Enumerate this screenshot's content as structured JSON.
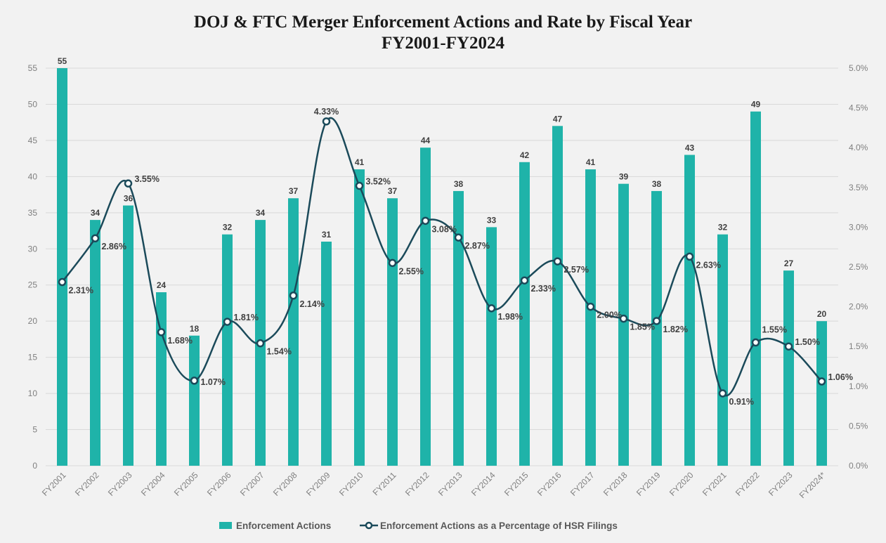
{
  "colors": {
    "bar": "#1fb3a9",
    "line": "#1b4a5a",
    "grid": "#d9d9d9",
    "axis_text": "#7f7f7f"
  },
  "chart_data": {
    "type": "bar",
    "title": "DOJ & FTC Merger Enforcement Actions and Rate by Fiscal Year",
    "subtitle": "FY2001-FY2024",
    "categories": [
      "FY2001",
      "FY2002",
      "FY2003",
      "FY2004",
      "FY2005",
      "FY2006",
      "FY2007",
      "FY2008",
      "FY2009",
      "FY2010",
      "FY2011",
      "FY2012",
      "FY2013",
      "FY2014",
      "FY2015",
      "FY2016",
      "FY2017",
      "FY2018",
      "FY2019",
      "FY2020",
      "FY2021",
      "FY2022",
      "FY2023",
      "FY2024*"
    ],
    "series": [
      {
        "name": "Enforcement Actions",
        "type": "bar",
        "axis": "left",
        "values": [
          55,
          34,
          36,
          24,
          18,
          32,
          34,
          37,
          31,
          41,
          37,
          44,
          38,
          33,
          42,
          47,
          41,
          39,
          38,
          43,
          32,
          49,
          27,
          20
        ]
      },
      {
        "name": "Enforcement Actions as a Percentage of HSR Filings",
        "type": "line",
        "axis": "right",
        "values": [
          2.31,
          2.86,
          3.55,
          1.68,
          1.07,
          1.81,
          1.54,
          2.14,
          4.33,
          3.52,
          2.55,
          3.08,
          2.87,
          1.98,
          2.33,
          2.57,
          2.0,
          1.85,
          1.82,
          2.63,
          0.91,
          1.55,
          1.5,
          1.06
        ],
        "labels": [
          "2.31%",
          "2.86%",
          "3.55%",
          "1.68%",
          "1.07%",
          "1.81%",
          "1.54%",
          "2.14%",
          "4.33%",
          "3.52%",
          "2.55%",
          "3.08%",
          "2.87%",
          "1.98%",
          "2.33%",
          "2.57%",
          "2.00%",
          "1.85%",
          "1.82%",
          "2.63%",
          "0.91%",
          "1.55%",
          "1.50%",
          "1.06%"
        ]
      }
    ],
    "y_left": {
      "min": 0,
      "max": 55,
      "ticks": [
        "0",
        "5",
        "10",
        "15",
        "20",
        "25",
        "30",
        "35",
        "40",
        "45",
        "50",
        "55"
      ]
    },
    "y_right": {
      "min": 0,
      "max": 5.0,
      "ticks": [
        "0.0%",
        "0.5%",
        "1.0%",
        "1.5%",
        "2.0%",
        "2.5%",
        "3.0%",
        "3.5%",
        "4.0%",
        "4.5%",
        "5.0%"
      ]
    },
    "grid": true,
    "legend_position": "bottom-center"
  }
}
